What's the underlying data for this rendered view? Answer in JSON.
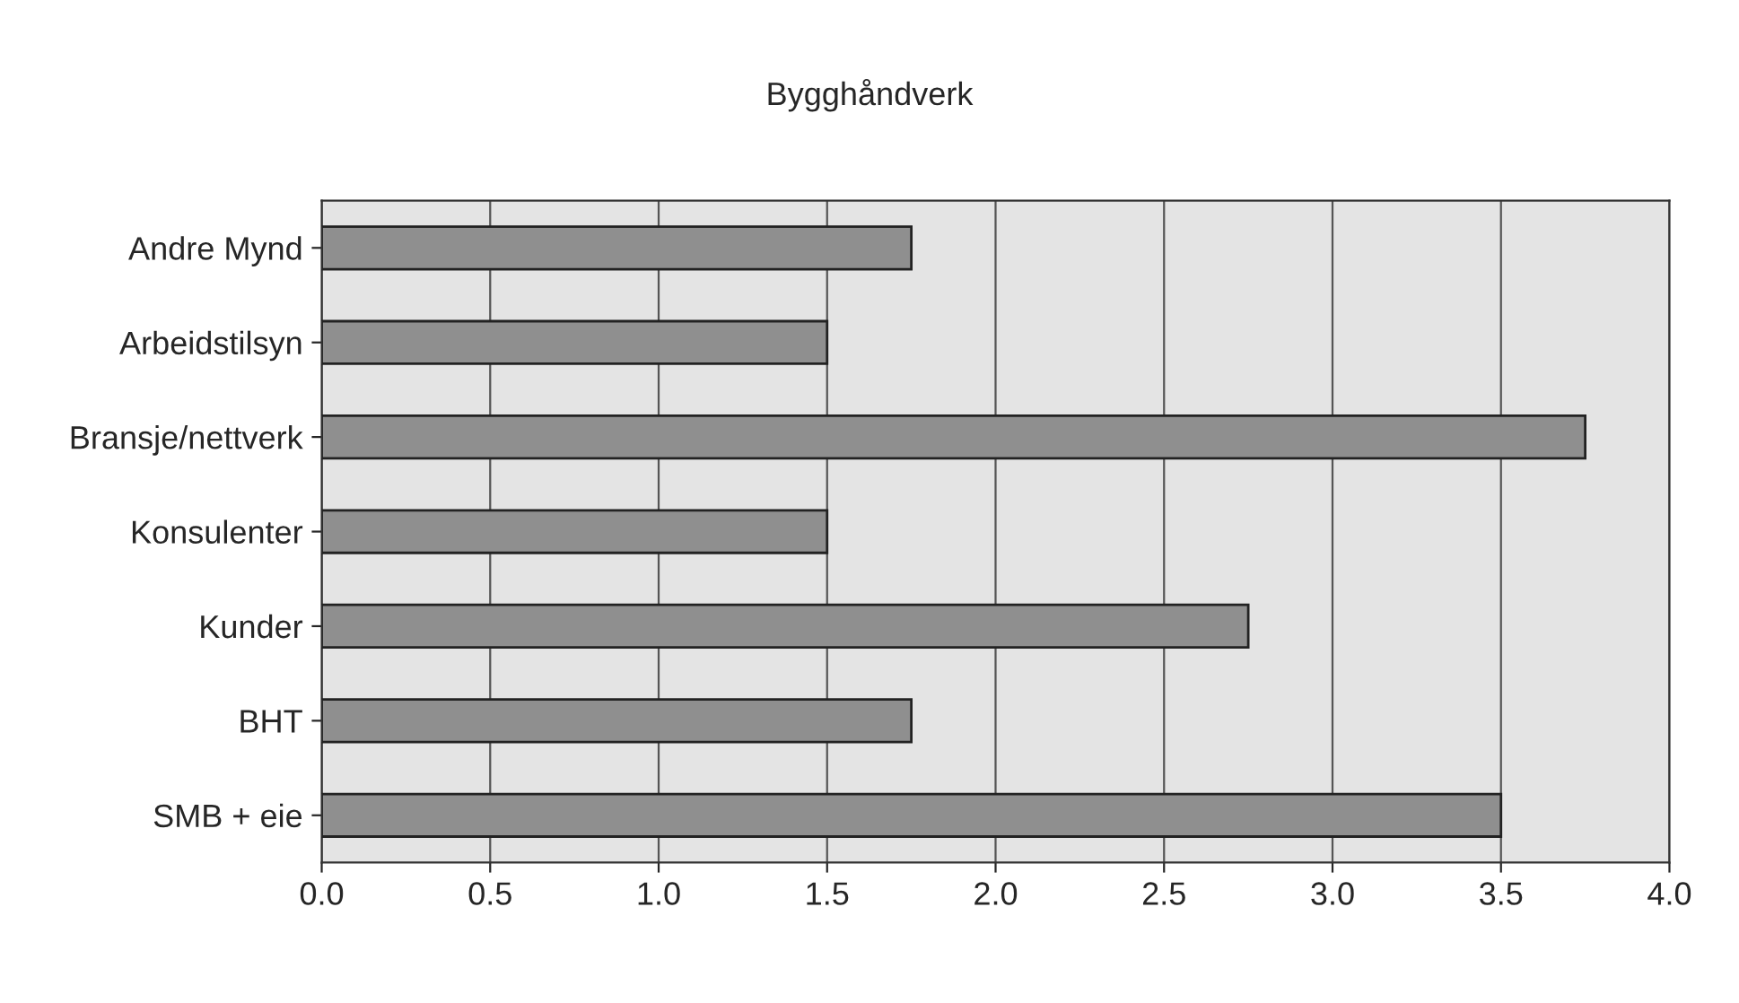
{
  "chart_data": {
    "type": "bar",
    "orientation": "horizontal",
    "title": "Bygghåndverk",
    "categories": [
      "Andre Mynd",
      "Arbeidstilsyn",
      "Bransje/nettverk",
      "Konsulenter",
      "Kunder",
      "BHT",
      "SMB + eie"
    ],
    "values": [
      1.75,
      1.5,
      3.75,
      1.5,
      2.75,
      1.75,
      3.5
    ],
    "color": "#8f8f8f",
    "xlim": [
      0,
      4
    ],
    "xticks": [
      {
        "value": 0,
        "label": "0.0"
      },
      {
        "value": 0.5,
        "label": "0.5"
      },
      {
        "value": 1,
        "label": "1.0"
      },
      {
        "value": 1.5,
        "label": "1.5"
      },
      {
        "value": 2,
        "label": "2.0"
      },
      {
        "value": 2.5,
        "label": "2.5"
      },
      {
        "value": 3,
        "label": "3.0"
      },
      {
        "value": 3.5,
        "label": "3.5"
      },
      {
        "value": 4,
        "label": "4.0"
      }
    ],
    "grid": "x",
    "legend": false
  }
}
